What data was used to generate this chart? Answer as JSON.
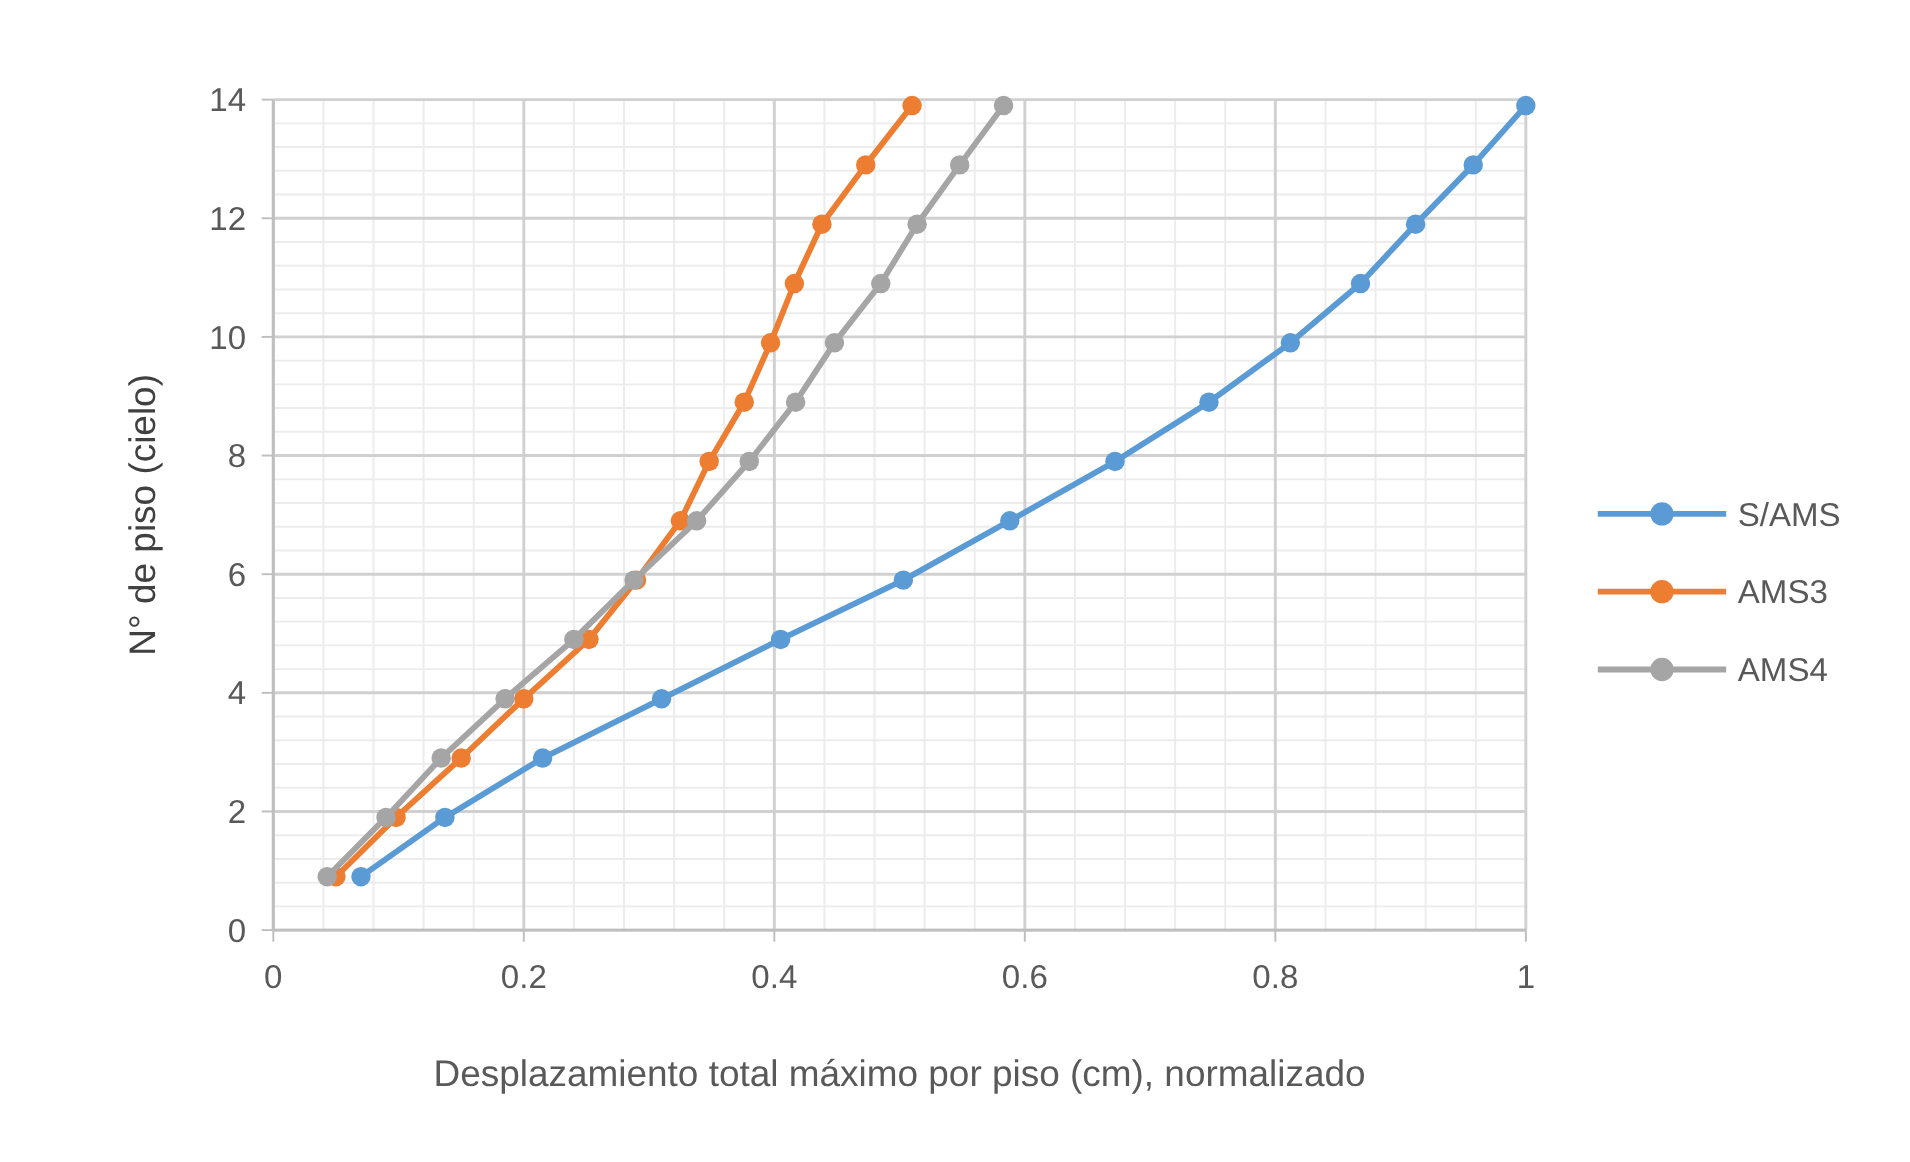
{
  "chart_data": {
    "type": "line",
    "xlabel": "Desplazamiento total máximo por piso (cm), normalizado",
    "ylabel": "N° de piso (cielo)",
    "xlim": [
      0,
      1
    ],
    "xticks": [
      0,
      0.2,
      0.4,
      0.6,
      0.8,
      1
    ],
    "ylim": [
      0,
      14
    ],
    "yticks": [
      0,
      2,
      4,
      6,
      8,
      10,
      12,
      14
    ],
    "grid": true,
    "legend": "right",
    "marker": "circle",
    "line_style": "solid",
    "series": [
      {
        "name": "S/AMS",
        "color": "#5b9bd5",
        "x": [
          0.07,
          0.137,
          0.215,
          0.31,
          0.405,
          0.503,
          0.588,
          0.672,
          0.747,
          0.812,
          0.868,
          0.912,
          0.958,
          1.0
        ],
        "values": [
          0.9,
          1.9,
          2.9,
          3.9,
          4.9,
          5.9,
          6.9,
          7.9,
          8.9,
          9.9,
          10.9,
          11.9,
          12.9,
          13.9
        ]
      },
      {
        "name": "AMS3",
        "color": "#ed7d31",
        "x": [
          0.05,
          0.098,
          0.15,
          0.2,
          0.252,
          0.29,
          0.325,
          0.348,
          0.376,
          0.397,
          0.416,
          0.438,
          0.473,
          0.51
        ],
        "values": [
          0.9,
          1.9,
          2.9,
          3.9,
          4.9,
          5.9,
          6.9,
          7.9,
          8.9,
          9.9,
          10.9,
          11.9,
          12.9,
          13.9
        ]
      },
      {
        "name": "AMS4",
        "color": "#a5a5a5",
        "x": [
          0.043,
          0.09,
          0.134,
          0.185,
          0.24,
          0.288,
          0.338,
          0.38,
          0.417,
          0.448,
          0.485,
          0.514,
          0.548,
          0.583
        ],
        "values": [
          0.9,
          1.9,
          2.9,
          3.9,
          4.9,
          5.9,
          6.9,
          7.9,
          8.9,
          9.9,
          10.9,
          11.9,
          12.9,
          13.9
        ]
      }
    ]
  }
}
